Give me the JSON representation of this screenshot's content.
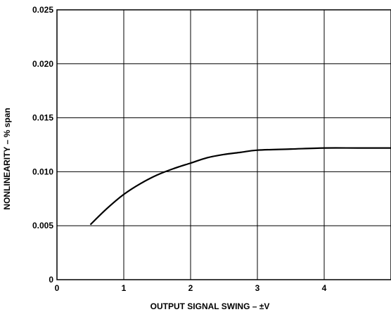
{
  "chart_data": {
    "type": "line",
    "title": "",
    "xlabel": "OUTPUT SIGNAL SWING – ±V",
    "ylabel": "NONLINEARITY – % span",
    "xlim": [
      0,
      5
    ],
    "ylim": [
      0,
      0.025
    ],
    "x_ticks": [
      "0",
      "1",
      "2",
      "3",
      "4"
    ],
    "y_ticks": [
      "0",
      "0.005",
      "0.010",
      "0.015",
      "0.020",
      "0.025"
    ],
    "grid": true,
    "legend": "none",
    "series": [
      {
        "x": [
          0.5,
          0.75,
          1.0,
          1.25,
          1.5,
          1.75,
          2.0,
          2.25,
          2.5,
          2.75,
          3.0,
          3.5,
          4.0,
          4.5,
          5.0
        ],
        "values": [
          0.0051,
          0.0066,
          0.0079,
          0.0089,
          0.0097,
          0.0103,
          0.0108,
          0.0113,
          0.0116,
          0.0118,
          0.012,
          0.0121,
          0.0122,
          0.0122,
          0.0122
        ]
      }
    ]
  }
}
